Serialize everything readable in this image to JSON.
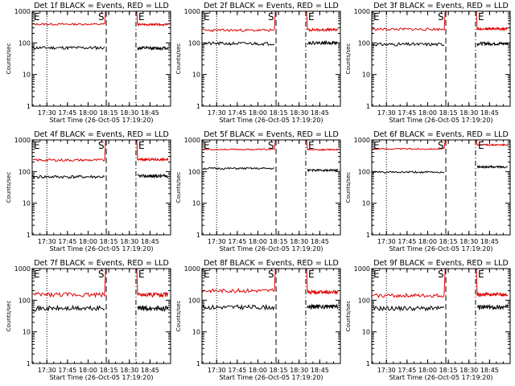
{
  "figure": {
    "title_prefix": "Det",
    "title_suffix": "BLACK = Events, RED = LLD",
    "xlabel": "Start Time (26-Oct-05 17:19:20)",
    "ylabel": "Counts/sec",
    "start_marker": "S",
    "end_marker": "E"
  },
  "colors": {
    "events": "#000000",
    "lld": "#e00000",
    "axes": "#000000",
    "background": "#ffffff"
  },
  "chart_data": [
    {
      "type": "line",
      "detector": "1f",
      "title": "Det 1f BLACK = Events, RED = LLD",
      "xlabel": "Start Time (26-Oct-05 17:19:20)",
      "ylabel": "Counts/sec",
      "yscale": "log",
      "ylim": [
        1,
        1000
      ],
      "yticks": [
        1,
        10,
        100,
        1000
      ],
      "xlim": [
        17.322,
        19.0
      ],
      "xticks": [
        "17:30",
        "17:45",
        "18:00",
        "18:15",
        "18:30",
        "18:45"
      ],
      "dotted_line": 17.5,
      "start_line": 18.22,
      "end_line": 18.58,
      "start_marker": "S",
      "end_marker": "E",
      "series": [
        {
          "name": "BLACK = Events",
          "color": "#000000",
          "segments": [
            {
              "from": 17.33,
              "to": 18.2,
              "level": 70,
              "noise": 0.05,
              "seed": 11
            },
            {
              "from": 18.6,
              "to": 18.97,
              "level": 68,
              "noise": 0.05,
              "seed": 12
            }
          ]
        },
        {
          "name": "RED = LLD",
          "color": "#e00000",
          "segments": [
            {
              "from": 17.33,
              "to": 18.2,
              "level": 390,
              "noise": 0.03,
              "seed": 13
            },
            {
              "from": 18.6,
              "to": 18.97,
              "level": 380,
              "noise": 0.03,
              "seed": 14
            }
          ]
        }
      ]
    },
    {
      "type": "line",
      "detector": "2f",
      "title": "Det 2f BLACK = Events, RED = LLD",
      "xlabel": "Start Time (26-Oct-05 17:19:20)",
      "ylabel": "Counts/sec",
      "yscale": "log",
      "ylim": [
        1,
        1000
      ],
      "yticks": [
        1,
        10,
        100,
        1000
      ],
      "xlim": [
        17.322,
        19.0
      ],
      "xticks": [
        "17:30",
        "17:45",
        "18:00",
        "18:15",
        "18:30",
        "18:45"
      ],
      "dotted_line": 17.5,
      "start_line": 18.22,
      "end_line": 18.58,
      "start_marker": "S",
      "end_marker": "E",
      "series": [
        {
          "name": "BLACK = Events",
          "color": "#000000",
          "segments": [
            {
              "from": 17.33,
              "to": 18.2,
              "level": 95,
              "noise": 0.05,
              "seed": 21
            },
            {
              "from": 18.6,
              "to": 18.97,
              "level": 100,
              "noise": 0.05,
              "seed": 22
            }
          ]
        },
        {
          "name": "RED = LLD",
          "color": "#e00000",
          "segments": [
            {
              "from": 17.33,
              "to": 18.2,
              "level": 250,
              "noise": 0.04,
              "seed": 23
            },
            {
              "from": 18.6,
              "to": 18.97,
              "level": 260,
              "noise": 0.04,
              "seed": 24
            }
          ]
        }
      ]
    },
    {
      "type": "line",
      "detector": "3f",
      "title": "Det 3f BLACK = Events, RED = LLD",
      "xlabel": "Start Time (26-Oct-05 17:19:20)",
      "ylabel": "Counts/sec",
      "yscale": "log",
      "ylim": [
        1,
        1000
      ],
      "yticks": [
        1,
        10,
        100,
        1000
      ],
      "xlim": [
        17.322,
        19.0
      ],
      "xticks": [
        "17:30",
        "17:45",
        "18:00",
        "18:15",
        "18:30",
        "18:45"
      ],
      "dotted_line": 17.5,
      "start_line": 18.22,
      "end_line": 18.58,
      "start_marker": "S",
      "end_marker": "E",
      "series": [
        {
          "name": "BLACK = Events",
          "color": "#000000",
          "segments": [
            {
              "from": 17.33,
              "to": 18.2,
              "level": 90,
              "noise": 0.05,
              "seed": 31
            },
            {
              "from": 18.6,
              "to": 18.97,
              "level": 95,
              "noise": 0.05,
              "seed": 32
            }
          ]
        },
        {
          "name": "RED = LLD",
          "color": "#e00000",
          "segments": [
            {
              "from": 17.33,
              "to": 18.2,
              "level": 270,
              "noise": 0.04,
              "seed": 33
            },
            {
              "from": 18.6,
              "to": 18.97,
              "level": 280,
              "noise": 0.04,
              "seed": 34
            }
          ]
        }
      ]
    },
    {
      "type": "line",
      "detector": "4f",
      "title": "Det 4f BLACK = Events, RED = LLD",
      "xlabel": "Start Time (26-Oct-05 17:19:20)",
      "ylabel": "Counts/sec",
      "yscale": "log",
      "ylim": [
        1,
        1000
      ],
      "yticks": [
        1,
        10,
        100,
        1000
      ],
      "xlim": [
        17.322,
        19.0
      ],
      "xticks": [
        "17:30",
        "17:45",
        "18:00",
        "18:15",
        "18:30",
        "18:45"
      ],
      "dotted_line": 17.5,
      "start_line": 18.22,
      "end_line": 18.58,
      "start_marker": "S",
      "end_marker": "E",
      "series": [
        {
          "name": "BLACK = Events",
          "color": "#000000",
          "segments": [
            {
              "from": 17.33,
              "to": 18.2,
              "level": 68,
              "noise": 0.05,
              "seed": 41
            },
            {
              "from": 18.6,
              "to": 18.97,
              "level": 72,
              "noise": 0.05,
              "seed": 42
            }
          ]
        },
        {
          "name": "RED = LLD",
          "color": "#e00000",
          "segments": [
            {
              "from": 17.33,
              "to": 18.2,
              "level": 230,
              "noise": 0.04,
              "seed": 43
            },
            {
              "from": 18.6,
              "to": 18.97,
              "level": 240,
              "noise": 0.04,
              "seed": 44
            }
          ]
        }
      ]
    },
    {
      "type": "line",
      "detector": "5f",
      "title": "Det 5f BLACK = Events, RED = LLD",
      "xlabel": "Start Time (26-Oct-05 17:19:20)",
      "ylabel": "Counts/sec",
      "yscale": "log",
      "ylim": [
        1,
        1000
      ],
      "yticks": [
        1,
        10,
        100,
        1000
      ],
      "xlim": [
        17.322,
        19.0
      ],
      "xticks": [
        "17:30",
        "17:45",
        "18:00",
        "18:15",
        "18:30",
        "18:45"
      ],
      "dotted_line": 17.5,
      "start_line": 18.22,
      "end_line": 18.58,
      "start_marker": "S",
      "end_marker": "E",
      "series": [
        {
          "name": "BLACK = Events",
          "color": "#000000",
          "segments": [
            {
              "from": 17.33,
              "to": 18.2,
              "level": 125,
              "noise": 0.03,
              "seed": 51
            },
            {
              "from": 18.6,
              "to": 18.97,
              "level": 110,
              "noise": 0.03,
              "seed": 52
            }
          ]
        },
        {
          "name": "RED = LLD",
          "color": "#e00000",
          "segments": [
            {
              "from": 17.33,
              "to": 18.2,
              "level": 500,
              "noise": 0.02,
              "seed": 53
            },
            {
              "from": 18.6,
              "to": 18.97,
              "level": 490,
              "noise": 0.02,
              "seed": 54
            }
          ]
        }
      ]
    },
    {
      "type": "line",
      "detector": "6f",
      "title": "Det 6f BLACK = Events, RED = LLD",
      "xlabel": "Start Time (26-Oct-05 17:19:20)",
      "ylabel": "Counts/sec",
      "yscale": "log",
      "ylim": [
        1,
        1000
      ],
      "yticks": [
        1,
        10,
        100,
        1000
      ],
      "xlim": [
        17.322,
        19.0
      ],
      "xticks": [
        "17:30",
        "17:45",
        "18:00",
        "18:15",
        "18:30",
        "18:45"
      ],
      "dotted_line": 17.5,
      "start_line": 18.22,
      "end_line": 18.58,
      "start_marker": "S",
      "end_marker": "E",
      "series": [
        {
          "name": "BLACK = Events",
          "color": "#000000",
          "segments": [
            {
              "from": 17.33,
              "to": 18.2,
              "level": 95,
              "noise": 0.03,
              "seed": 61
            },
            {
              "from": 18.6,
              "to": 18.97,
              "level": 140,
              "noise": 0.03,
              "seed": 62
            }
          ]
        },
        {
          "name": "RED = LLD",
          "color": "#e00000",
          "segments": [
            {
              "from": 17.33,
              "to": 18.2,
              "level": 520,
              "noise": 0.02,
              "seed": 63
            },
            {
              "from": 18.6,
              "to": 18.97,
              "level": 700,
              "noise": 0.02,
              "seed": 64
            }
          ]
        }
      ]
    },
    {
      "type": "line",
      "detector": "7f",
      "title": "Det 7f BLACK = Events, RED = LLD",
      "xlabel": "Start Time (26-Oct-05 17:19:20)",
      "ylabel": "Counts/sec",
      "yscale": "log",
      "ylim": [
        1,
        1000
      ],
      "yticks": [
        1,
        10,
        100,
        1000
      ],
      "xlim": [
        17.322,
        19.0
      ],
      "xticks": [
        "17:30",
        "17:45",
        "18:00",
        "18:15",
        "18:30",
        "18:45"
      ],
      "dotted_line": 17.5,
      "start_line": 18.22,
      "end_line": 18.58,
      "start_marker": "S",
      "end_marker": "E",
      "series": [
        {
          "name": "BLACK = Events",
          "color": "#000000",
          "segments": [
            {
              "from": 17.33,
              "to": 18.2,
              "level": 55,
              "noise": 0.08,
              "seed": 71
            },
            {
              "from": 18.6,
              "to": 18.97,
              "level": 55,
              "noise": 0.08,
              "seed": 72
            }
          ]
        },
        {
          "name": "RED = LLD",
          "color": "#e00000",
          "segments": [
            {
              "from": 17.33,
              "to": 18.2,
              "level": 150,
              "noise": 0.07,
              "seed": 73
            },
            {
              "from": 18.6,
              "to": 18.97,
              "level": 150,
              "noise": 0.07,
              "seed": 74
            }
          ]
        }
      ]
    },
    {
      "type": "line",
      "detector": "8f",
      "title": "Det 8f BLACK = Events, RED = LLD",
      "xlabel": "Start Time (26-Oct-05 17:19:20)",
      "ylabel": "Counts/sec",
      "yscale": "log",
      "ylim": [
        1,
        1000
      ],
      "yticks": [
        1,
        10,
        100,
        1000
      ],
      "xlim": [
        17.322,
        19.0
      ],
      "xticks": [
        "17:30",
        "17:45",
        "18:00",
        "18:15",
        "18:30",
        "18:45"
      ],
      "dotted_line": 17.5,
      "start_line": 18.22,
      "end_line": 18.58,
      "start_marker": "S",
      "end_marker": "E",
      "series": [
        {
          "name": "BLACK = Events",
          "color": "#000000",
          "segments": [
            {
              "from": 17.33,
              "to": 18.2,
              "level": 60,
              "noise": 0.07,
              "seed": 81
            },
            {
              "from": 18.6,
              "to": 18.97,
              "level": 62,
              "noise": 0.07,
              "seed": 82
            }
          ]
        },
        {
          "name": "RED = LLD",
          "color": "#e00000",
          "segments": [
            {
              "from": 17.33,
              "to": 18.2,
              "level": 200,
              "noise": 0.06,
              "seed": 83
            },
            {
              "from": 18.6,
              "to": 18.97,
              "level": 180,
              "noise": 0.06,
              "seed": 84
            }
          ]
        }
      ]
    },
    {
      "type": "line",
      "detector": "9f",
      "title": "Det 9f BLACK = Events, RED = LLD",
      "xlabel": "Start Time (26-Oct-05 17:19:20)",
      "ylabel": "Counts/sec",
      "yscale": "log",
      "ylim": [
        1,
        1000
      ],
      "yticks": [
        1,
        10,
        100,
        1000
      ],
      "xlim": [
        17.322,
        19.0
      ],
      "xticks": [
        "17:30",
        "17:45",
        "18:00",
        "18:15",
        "18:30",
        "18:45"
      ],
      "dotted_line": 17.5,
      "start_line": 18.22,
      "end_line": 18.58,
      "start_marker": "S",
      "end_marker": "E",
      "series": [
        {
          "name": "BLACK = Events",
          "color": "#000000",
          "segments": [
            {
              "from": 17.33,
              "to": 18.2,
              "level": 55,
              "noise": 0.07,
              "seed": 91
            },
            {
              "from": 18.6,
              "to": 18.97,
              "level": 60,
              "noise": 0.07,
              "seed": 92
            }
          ]
        },
        {
          "name": "RED = LLD",
          "color": "#e00000",
          "segments": [
            {
              "from": 17.33,
              "to": 18.2,
              "level": 140,
              "noise": 0.06,
              "seed": 93
            },
            {
              "from": 18.6,
              "to": 18.97,
              "level": 150,
              "noise": 0.06,
              "seed": 94
            }
          ]
        }
      ]
    }
  ]
}
